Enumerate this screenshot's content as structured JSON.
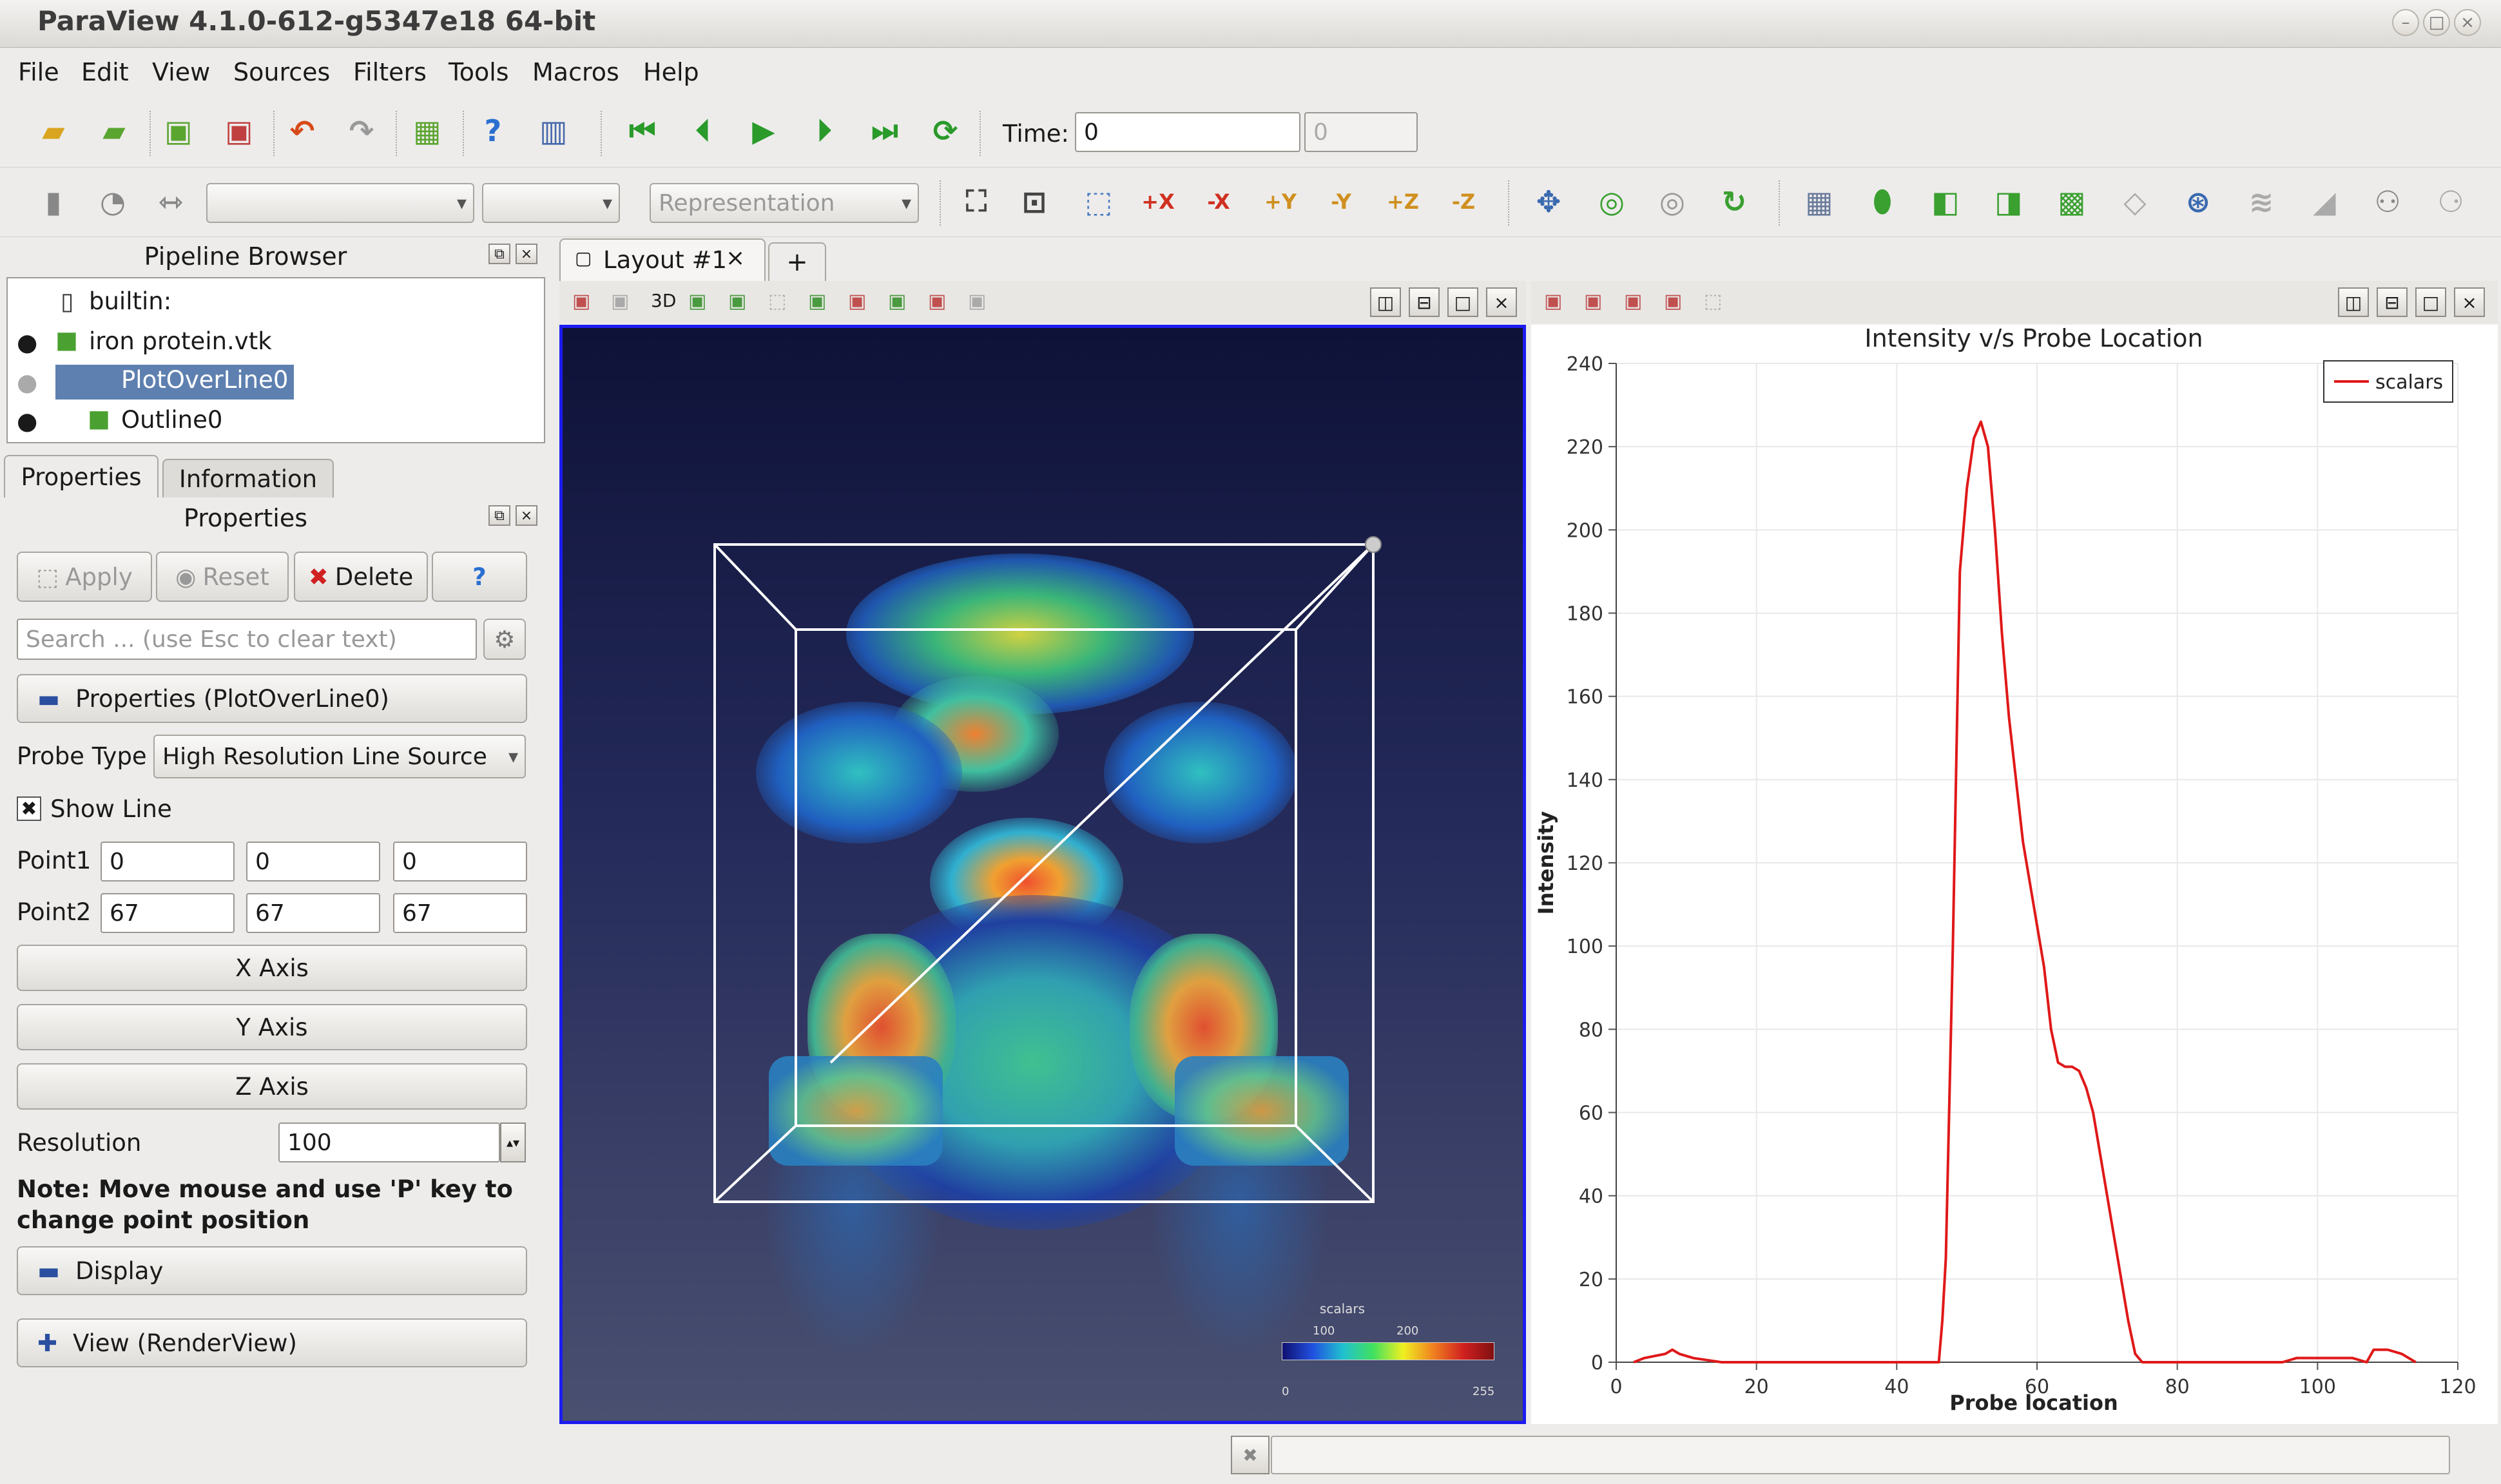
{
  "window": {
    "title": "ParaView 4.1.0-612-g5347e18 64-bit"
  },
  "menu": [
    "File",
    "Edit",
    "View",
    "Sources",
    "Filters",
    "Tools",
    "Macros",
    "Help"
  ],
  "toolbar": {
    "time_label": "Time:",
    "time_value": "0",
    "time_step": "0",
    "representation": "Representation"
  },
  "pipeline": {
    "title": "Pipeline Browser",
    "items": [
      "builtin:",
      "iron protein.vtk",
      "PlotOverLine0",
      "Outline0"
    ]
  },
  "tabs": {
    "properties": "Properties",
    "information": "Information"
  },
  "properties": {
    "title": "Properties",
    "apply": "Apply",
    "reset": "Reset",
    "delete": "Delete",
    "help": "?",
    "search_placeholder": "Search ... (use Esc to clear text)",
    "section": "Properties (PlotOverLine0)",
    "probe_type_label": "Probe Type",
    "probe_type": "High Resolution Line Source",
    "show_line": "Show Line",
    "point1_label": "Point1",
    "point1": [
      "0",
      "0",
      "0"
    ],
    "point2_label": "Point2",
    "point2": [
      "67",
      "67",
      "67"
    ],
    "x_axis": "X Axis",
    "y_axis": "Y Axis",
    "z_axis": "Z Axis",
    "resolution_label": "Resolution",
    "resolution": "100",
    "note": "Note: Move mouse and use 'P' key to change point position",
    "display": "Display",
    "view": "View (RenderView)"
  },
  "layout": {
    "tab": "Layout #1",
    "add": "+",
    "three_d": "3D"
  },
  "colorbar": {
    "title": "scalars",
    "min": "0",
    "max": "255",
    "mid1": "100",
    "mid2": "200"
  },
  "colors": {
    "selection": "#5e80b0",
    "plot_line": "#e01818",
    "active_view_border": "#1c1cf0"
  },
  "chart_data": {
    "type": "line",
    "title": "Intensity v/s Probe Location",
    "xlabel": "Probe location",
    "ylabel": "Intensity",
    "xlim": [
      0,
      120
    ],
    "ylim": [
      0,
      240
    ],
    "xticks": [
      0,
      20,
      40,
      60,
      80,
      100,
      120
    ],
    "yticks": [
      0,
      20,
      40,
      60,
      80,
      100,
      120,
      140,
      160,
      180,
      200,
      220,
      240
    ],
    "grid": true,
    "legend_position": "top-right",
    "series": [
      {
        "name": "scalars",
        "color": "#e01818",
        "x": [
          2.5,
          4,
          7,
          8,
          9,
          11,
          15,
          20,
          30,
          40,
          46,
          46.5,
          47,
          48,
          49,
          50,
          51,
          52,
          53,
          54,
          55,
          56,
          57,
          58,
          59,
          60,
          61,
          62,
          63,
          64,
          65,
          66,
          67,
          68,
          69,
          70,
          71,
          72,
          73,
          74,
          75,
          76,
          77,
          78,
          80,
          90,
          95,
          97,
          100,
          105,
          107,
          108,
          110,
          112,
          114
        ],
        "y": [
          0,
          1,
          2,
          3,
          2,
          1,
          0,
          0,
          0,
          0,
          0,
          10,
          25,
          100,
          190,
          210,
          222,
          226,
          220,
          200,
          175,
          155,
          140,
          125,
          115,
          105,
          95,
          80,
          72,
          71,
          71,
          70,
          66,
          60,
          50,
          40,
          30,
          20,
          10,
          2,
          0,
          0,
          0,
          0,
          0,
          0,
          0,
          1,
          1,
          1,
          0,
          3,
          3,
          2,
          0
        ]
      }
    ]
  }
}
